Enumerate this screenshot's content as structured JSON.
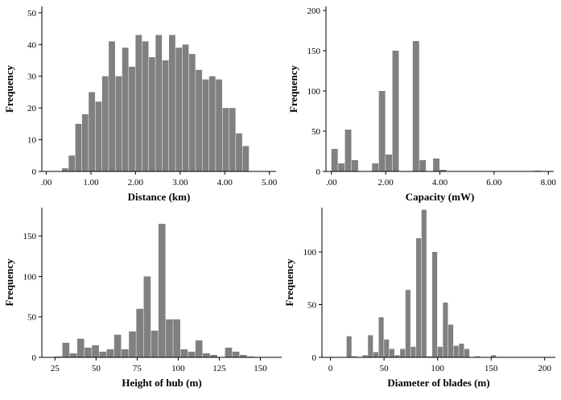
{
  "chart_data": [
    {
      "type": "bar",
      "xlabel": "Distance (km)",
      "ylabel": "Frequency",
      "bar_color": "#808080",
      "xlim": [
        -0.1,
        5.15
      ],
      "ylim": [
        0,
        52
      ],
      "x_ticks": [
        ".00",
        "1.00",
        "2.00",
        "3.00",
        "4.00",
        "5.00"
      ],
      "x_tick_values": [
        0,
        1,
        2,
        3,
        4,
        5
      ],
      "y_ticks": [
        0,
        10,
        20,
        30,
        40,
        50
      ],
      "bin_width": 0.15,
      "bin_starts": [
        0.2,
        0.35,
        0.5,
        0.65,
        0.8,
        0.95,
        1.1,
        1.25,
        1.4,
        1.55,
        1.7,
        1.85,
        2.0,
        2.15,
        2.3,
        2.45,
        2.6,
        2.75,
        2.9,
        3.05,
        3.2,
        3.35,
        3.5,
        3.65,
        3.8,
        3.95,
        4.1,
        4.25,
        4.4,
        4.55,
        4.7,
        4.85
      ],
      "values": [
        0,
        1,
        5,
        15,
        18,
        25,
        22,
        30,
        41,
        30,
        39,
        33,
        43,
        41,
        36,
        43,
        35,
        43,
        39,
        40,
        37,
        32,
        29,
        30,
        29,
        20,
        20,
        12,
        8,
        0,
        0,
        0
      ]
    },
    {
      "type": "bar",
      "xlabel": "Capacity (mW)",
      "ylabel": "Frequency",
      "bar_color": "#808080",
      "xlim": [
        -0.2,
        8.2
      ],
      "ylim": [
        0,
        205
      ],
      "x_ticks": [
        ".00",
        "2.00",
        "4.00",
        "6.00",
        "8.00"
      ],
      "x_tick_values": [
        0,
        2,
        4,
        6,
        8
      ],
      "y_ticks": [
        0,
        50,
        100,
        150,
        200
      ],
      "bin_width": 0.25,
      "bin_starts": [
        0.0,
        0.25,
        0.5,
        0.75,
        1.0,
        1.25,
        1.5,
        1.75,
        2.0,
        2.25,
        2.5,
        2.75,
        3.0,
        3.25,
        3.5,
        3.75,
        4.0,
        4.25,
        4.5,
        7.5
      ],
      "values": [
        28,
        10,
        52,
        14,
        0,
        0,
        10,
        100,
        21,
        150,
        0,
        0,
        162,
        14,
        0,
        16,
        2,
        0,
        0,
        1
      ]
    },
    {
      "type": "bar",
      "xlabel": "Height of hub (m)",
      "ylabel": "Frequency",
      "bar_color": "#808080",
      "xlim": [
        17,
        163
      ],
      "ylim": [
        0,
        185
      ],
      "x_ticks": [
        "25",
        "50",
        "75",
        "100",
        "125",
        "150"
      ],
      "x_tick_values": [
        25,
        50,
        75,
        100,
        125,
        150
      ],
      "y_ticks": [
        0,
        50,
        100,
        150
      ],
      "bin_width": 4.5,
      "bin_starts": [
        25,
        29.5,
        34,
        38.5,
        43,
        47.5,
        52,
        56.5,
        61,
        65.5,
        70,
        74.5,
        79,
        83.5,
        88,
        92.5,
        97,
        101.5,
        106,
        110.5,
        115,
        119.5,
        124,
        128.5,
        133,
        137.5,
        142
      ],
      "values": [
        1,
        18,
        5,
        23,
        12,
        15,
        7,
        10,
        28,
        10,
        32,
        60,
        100,
        33,
        165,
        47,
        47,
        10,
        7,
        21,
        5,
        3,
        0,
        12,
        7,
        3,
        1
      ]
    },
    {
      "type": "bar",
      "xlabel": "Diameter of blades (m)",
      "ylabel": "Frequency",
      "bar_color": "#808080",
      "xlim": [
        -8,
        210
      ],
      "ylim": [
        0,
        142
      ],
      "x_ticks": [
        "0",
        "50",
        "100",
        "150",
        "200"
      ],
      "x_tick_values": [
        0,
        50,
        100,
        150,
        200
      ],
      "y_ticks": [
        0,
        50,
        100
      ],
      "bin_width": 5,
      "bin_starts": [
        15,
        20,
        25,
        30,
        35,
        40,
        45,
        50,
        55,
        60,
        65,
        70,
        75,
        80,
        85,
        90,
        95,
        100,
        105,
        110,
        115,
        120,
        125,
        130,
        135,
        140,
        145,
        150
      ],
      "values": [
        20,
        1,
        0,
        2,
        21,
        5,
        38,
        17,
        8,
        2,
        8,
        64,
        10,
        113,
        140,
        1,
        100,
        10,
        52,
        31,
        11,
        13,
        8,
        0,
        1,
        0,
        0,
        2
      ]
    }
  ]
}
